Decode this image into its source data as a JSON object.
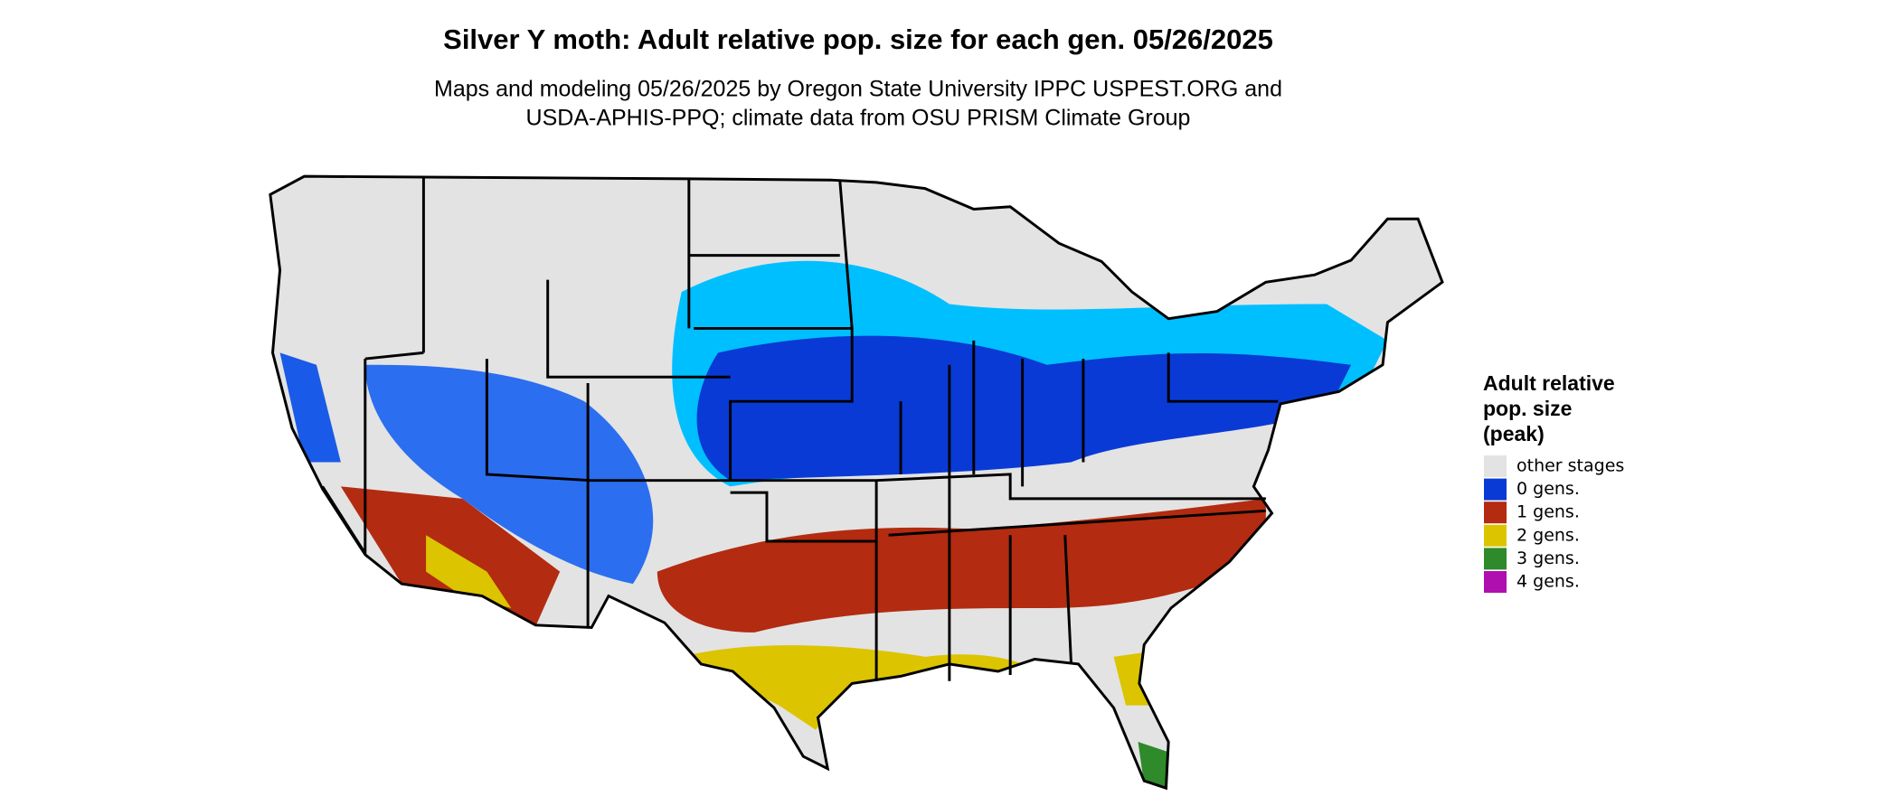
{
  "title": "Silver Y moth: Adult relative pop. size for each gen. 05/26/2025",
  "subtitle": [
    "Maps and modeling 05/26/2025 by Oregon State University IPPC USPEST.ORG and",
    "USDA-APHIS-PPQ; climate data from OSU PRISM Climate Group"
  ],
  "legend": {
    "title": [
      "Adult relative",
      "pop. size",
      "(peak)"
    ],
    "items": [
      {
        "label": "other stages",
        "color": "#e3e3e3"
      },
      {
        "label": "0 gens.",
        "color": "#0a3ad6"
      },
      {
        "label": "1 gens.",
        "color": "#b32b10"
      },
      {
        "label": "2 gens.",
        "color": "#dcc400"
      },
      {
        "label": "3 gens.",
        "color": "#2e8a2a"
      },
      {
        "label": "4 gens.",
        "color": "#b00fb0"
      }
    ]
  }
}
